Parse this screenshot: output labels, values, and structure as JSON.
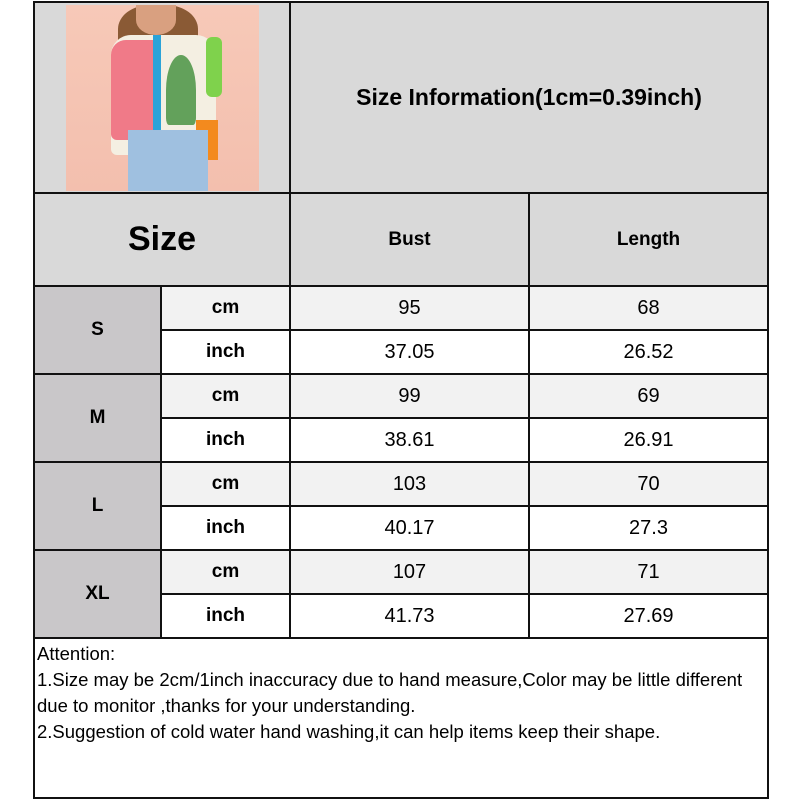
{
  "header": {
    "title": "Size Information(1cm=0.39inch)",
    "size_label": "Size",
    "columns": [
      "Bust",
      "Length"
    ]
  },
  "product_image": {
    "alt": "Woman wearing a tropical palm tree print short-sleeve shirt and jeans"
  },
  "sizes": [
    {
      "size": "S",
      "rows": [
        {
          "unit": "cm",
          "bust": "95",
          "length": "68"
        },
        {
          "unit": "inch",
          "bust": "37.05",
          "length": "26.52"
        }
      ]
    },
    {
      "size": "M",
      "rows": [
        {
          "unit": "cm",
          "bust": "99",
          "length": "69"
        },
        {
          "unit": "inch",
          "bust": "38.61",
          "length": "26.91"
        }
      ]
    },
    {
      "size": "L",
      "rows": [
        {
          "unit": "cm",
          "bust": "103",
          "length": "70"
        },
        {
          "unit": "inch",
          "bust": "40.17",
          "length": "27.3"
        }
      ]
    },
    {
      "size": "XL",
      "rows": [
        {
          "unit": "cm",
          "bust": "107",
          "length": "71"
        },
        {
          "unit": "inch",
          "bust": "41.73",
          "length": "27.69"
        }
      ]
    }
  ],
  "notes": {
    "heading": "Attention:",
    "lines": [
      "1.Size may be 2cm/1inch inaccuracy due to hand measure,Color may be little different due to monitor ,thanks for your understanding.",
      "2.Suggestion of cold water hand washing,it can help items keep their shape."
    ]
  },
  "colors": {
    "header_bg": "#d9d9d9",
    "size_label_bg": "#c9c7c9",
    "cm_row_bg": "#f2f2f2",
    "inch_row_bg": "#ffffff",
    "border": "#111111"
  }
}
